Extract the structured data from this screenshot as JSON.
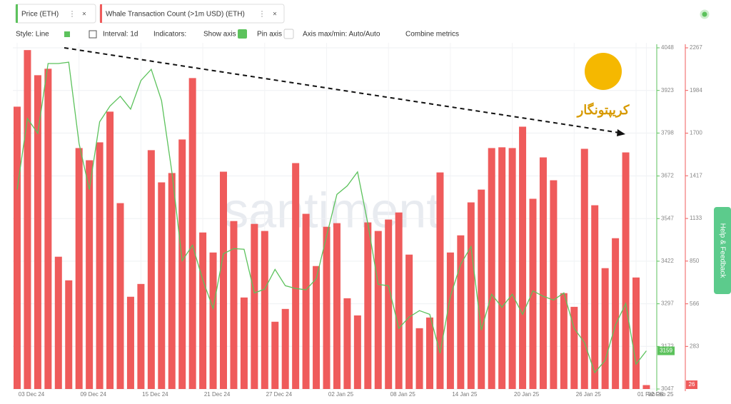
{
  "toolbar": {
    "style": "Style: Line",
    "interval": "Interval: 1d",
    "indicators": "Indicators:",
    "show_axis": "Show axis",
    "pin_axis": "Pin axis",
    "axis_minmax": "Axis max/min: Auto/Auto",
    "combine": "Combine metrics"
  },
  "watermark": "santiment",
  "logo_text": "کریپتونگار",
  "help": "Help & Feedback",
  "chart_data": {
    "type": "bar",
    "categories": [
      "03 Dec 24",
      null,
      null,
      null,
      null,
      null,
      "09 Dec 24",
      null,
      null,
      null,
      null,
      null,
      "15 Dec 24",
      null,
      null,
      null,
      null,
      null,
      "21 Dec 24",
      null,
      null,
      null,
      null,
      null,
      "27 Dec 24",
      null,
      null,
      null,
      null,
      null,
      "02 Jan 25",
      null,
      null,
      null,
      null,
      null,
      "08 Jan 25",
      null,
      null,
      null,
      null,
      null,
      "14 Jan 25",
      null,
      null,
      null,
      null,
      null,
      "20 Jan 25",
      null,
      null,
      null,
      null,
      null,
      "26 Jan 25",
      null,
      null,
      null,
      null,
      null,
      "01 Feb 25",
      "02 Feb 25"
    ],
    "series": [
      {
        "name": "Whale Transaction Count (>1m USD) (ETH)",
        "type": "bar",
        "axis": "y2",
        "color": "#ef5b5b",
        "values": [
          1876,
          2252,
          2085,
          2128,
          879,
          722,
          1601,
          1520,
          1639,
          1843,
          1235,
          613,
          698,
          1587,
          1373,
          1435,
          1658,
          2066,
          1040,
          907,
          1444,
          1116,
          608,
          1097,
          1050,
          447,
          532,
          1501,
          1164,
          817,
          1078,
          1102,
          603,
          489,
          1107,
          1050,
          1126,
          1173,
          893,
          404,
          475,
          1439,
          907,
          1021,
          1240,
          1325,
          1601,
          1606,
          1601,
          1743,
          1264,
          1539,
          1387,
          637,
          546,
          1596,
          1221,
          803,
          1002,
          1572,
          741,
          26
        ]
      },
      {
        "name": "Price (ETH)",
        "type": "line",
        "axis": "y",
        "color": "#5cc25c",
        "values": [
          3632,
          3841,
          3797,
          4002,
          4002,
          4006,
          3768,
          3632,
          3831,
          3877,
          3906,
          3868,
          3952,
          3985,
          3893,
          3684,
          3423,
          3469,
          3367,
          3283,
          3444,
          3459,
          3457,
          3329,
          3340,
          3398,
          3350,
          3342,
          3338,
          3371,
          3496,
          3618,
          3643,
          3684,
          3532,
          3354,
          3350,
          3225,
          3258,
          3277,
          3266,
          3152,
          3319,
          3413,
          3465,
          3220,
          3325,
          3287,
          3325,
          3266,
          3335,
          3319,
          3308,
          3329,
          3225,
          3183,
          3095,
          3131,
          3235,
          3298,
          3120,
          3159
        ]
      }
    ],
    "ylim": [
      3047,
      4048
    ],
    "yticks": [
      4048,
      3923,
      3798,
      3672,
      3547,
      3422,
      3297,
      3172,
      3047
    ],
    "y2lim": [
      0,
      2267
    ],
    "y2ticks": [
      2267,
      1984,
      1700,
      1417,
      1133,
      850,
      566,
      283
    ],
    "grid": true
  }
}
